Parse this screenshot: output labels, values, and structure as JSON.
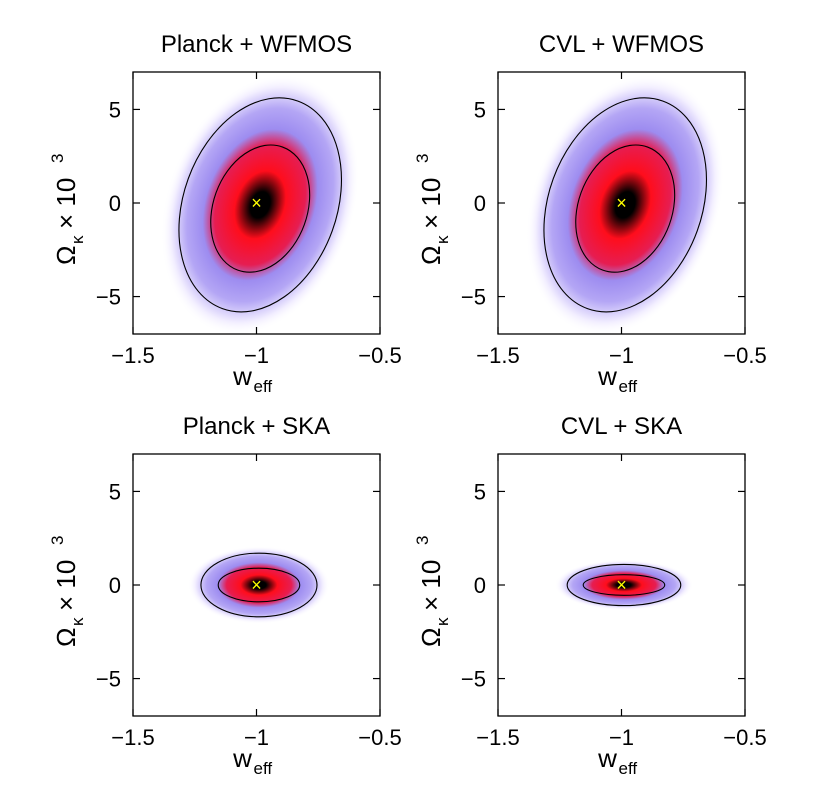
{
  "chart_data": [
    {
      "type": "contour",
      "title": "Planck + WFMOS",
      "xlabel": "w",
      "xlabel_sub": "eff",
      "ylabel": "Ω",
      "ylabel_sub": "κ",
      "ylabel_suffix": "× 10",
      "ylabel_sup": "3",
      "xlim": [
        -1.5,
        -0.5
      ],
      "ylim": [
        -7,
        7
      ],
      "xticks": [
        -1.5,
        -1,
        -0.5
      ],
      "xtick_labels": [
        "−1.5",
        "−1",
        "−0.5"
      ],
      "yticks": [
        -5,
        0,
        5
      ],
      "ytick_labels": [
        "−5",
        "0",
        "5"
      ],
      "fiducial": {
        "x": -1,
        "y": 0,
        "marker": "×",
        "color": "#ffff00"
      },
      "contours": [
        {
          "level": "1-sigma",
          "cx": -0.985,
          "cy": -0.3,
          "rx": 0.19,
          "ry": 3.5,
          "angle_deg": 20
        },
        {
          "level": "2-sigma",
          "cx": -0.985,
          "cy": -0.1,
          "rx": 0.31,
          "ry": 5.9,
          "angle_deg": 20
        }
      ]
    },
    {
      "type": "contour",
      "title": "CVL + WFMOS",
      "xlabel": "w",
      "xlabel_sub": "eff",
      "ylabel": "Ω",
      "ylabel_sub": "κ",
      "ylabel_suffix": "× 10",
      "ylabel_sup": "3",
      "xlim": [
        -1.5,
        -0.5
      ],
      "ylim": [
        -7,
        7
      ],
      "xticks": [
        -1.5,
        -1,
        -0.5
      ],
      "xtick_labels": [
        "−1.5",
        "−1",
        "−0.5"
      ],
      "yticks": [
        -5,
        0,
        5
      ],
      "ytick_labels": [
        "−5",
        "0",
        "5"
      ],
      "fiducial": {
        "x": -1,
        "y": 0,
        "marker": "×",
        "color": "#ffff00"
      },
      "contours": [
        {
          "level": "1-sigma",
          "cx": -0.985,
          "cy": -0.3,
          "rx": 0.19,
          "ry": 3.5,
          "angle_deg": 20
        },
        {
          "level": "2-sigma",
          "cx": -0.985,
          "cy": -0.1,
          "rx": 0.31,
          "ry": 5.9,
          "angle_deg": 20
        }
      ]
    },
    {
      "type": "contour",
      "title": "Planck + SKA",
      "xlabel": "w",
      "xlabel_sub": "eff",
      "ylabel": "Ω",
      "ylabel_sub": "κ",
      "ylabel_suffix": "× 10",
      "ylabel_sup": "3",
      "xlim": [
        -1.5,
        -0.5
      ],
      "ylim": [
        -7,
        7
      ],
      "xticks": [
        -1.5,
        -1,
        -0.5
      ],
      "xtick_labels": [
        "−1.5",
        "−1",
        "−0.5"
      ],
      "yticks": [
        -5,
        0,
        5
      ],
      "ytick_labels": [
        "−5",
        "0",
        "5"
      ],
      "fiducial": {
        "x": -1,
        "y": 0,
        "marker": "×",
        "color": "#ffff00"
      },
      "contours": [
        {
          "level": "1-sigma",
          "cx": -0.99,
          "cy": 0.0,
          "rx": 0.165,
          "ry": 0.9,
          "angle_deg": 0
        },
        {
          "level": "2-sigma",
          "cx": -0.99,
          "cy": 0.0,
          "rx": 0.235,
          "ry": 1.7,
          "angle_deg": 0
        }
      ]
    },
    {
      "type": "contour",
      "title": "CVL + SKA",
      "xlabel": "w",
      "xlabel_sub": "eff",
      "ylabel": "Ω",
      "ylabel_sub": "κ",
      "ylabel_suffix": "× 10",
      "ylabel_sup": "3",
      "xlim": [
        -1.5,
        -0.5
      ],
      "ylim": [
        -7,
        7
      ],
      "xticks": [
        -1.5,
        -1,
        -0.5
      ],
      "xtick_labels": [
        "−1.5",
        "−1",
        "−0.5"
      ],
      "yticks": [
        -5,
        0,
        5
      ],
      "ytick_labels": [
        "−5",
        "0",
        "5"
      ],
      "fiducial": {
        "x": -1,
        "y": 0,
        "marker": "×",
        "color": "#ffff00"
      },
      "contours": [
        {
          "level": "1-sigma",
          "cx": -0.99,
          "cy": 0.0,
          "rx": 0.165,
          "ry": 0.55,
          "angle_deg": 0
        },
        {
          "level": "2-sigma",
          "cx": -0.99,
          "cy": 0.0,
          "rx": 0.23,
          "ry": 1.1,
          "angle_deg": 0
        }
      ]
    }
  ],
  "colormap": {
    "outer": "#f2eeff",
    "mid_outer": "#b4a6f5",
    "mid": "#9d8cf0",
    "mid_inner": "#e61d52",
    "inner": "#ff0d1c",
    "core": "#000000"
  }
}
